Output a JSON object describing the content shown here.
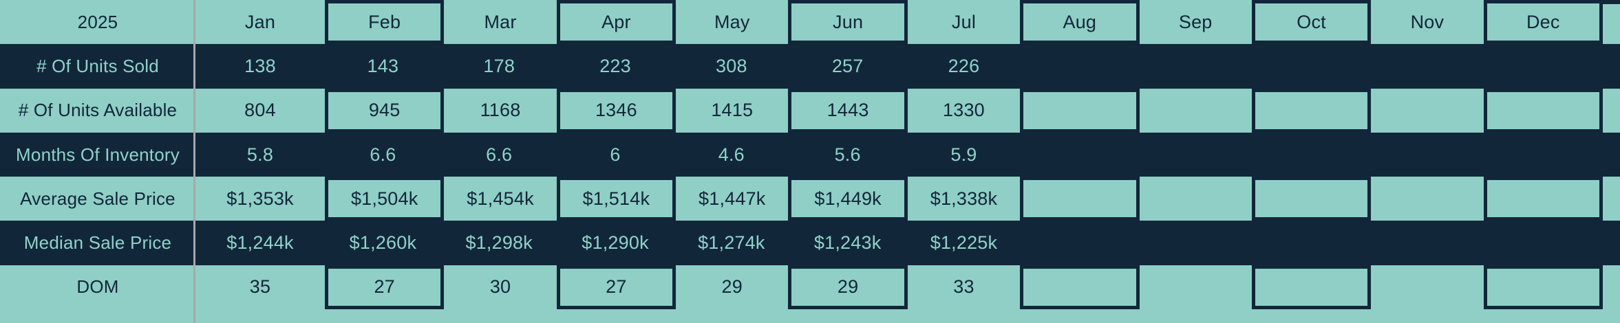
{
  "table": {
    "year_label": "2025",
    "months": [
      "Jan",
      "Feb",
      "Mar",
      "Apr",
      "May",
      "Jun",
      "Jul",
      "Aug",
      "Sep",
      "Oct",
      "Nov",
      "Dec"
    ],
    "boxed_month_indices": [
      1,
      3,
      5,
      7,
      9,
      11
    ],
    "rows": [
      {
        "label": "# Of Units Sold",
        "theme": "dark",
        "values": [
          "138",
          "143",
          "178",
          "223",
          "308",
          "257",
          "226",
          "",
          "",
          "",
          "",
          ""
        ]
      },
      {
        "label": "# Of Units Available",
        "theme": "light",
        "values": [
          "804",
          "945",
          "1168",
          "1346",
          "1415",
          "1443",
          "1330",
          "",
          "",
          "",
          "",
          ""
        ]
      },
      {
        "label": "Months Of Inventory",
        "theme": "dark",
        "values": [
          "5.8",
          "6.6",
          "6.6",
          "6",
          "4.6",
          "5.6",
          "5.9",
          "",
          "",
          "",
          "",
          ""
        ]
      },
      {
        "label": "Average Sale Price",
        "theme": "light",
        "values": [
          "$1,353k",
          "$1,504k",
          "$1,454k",
          "$1,514k",
          "$1,447k",
          "$1,449k",
          "$1,338k",
          "",
          "",
          "",
          "",
          ""
        ]
      },
      {
        "label": "Median Sale Price",
        "theme": "dark",
        "values": [
          "$1,244k",
          "$1,260k",
          "$1,298k",
          "$1,290k",
          "$1,274k",
          "$1,243k",
          "$1,225k",
          "",
          "",
          "",
          "",
          ""
        ]
      },
      {
        "label": "DOM",
        "theme": "light",
        "values": [
          "35",
          "27",
          "30",
          "27",
          "29",
          "29",
          "33",
          "",
          "",
          "",
          "",
          ""
        ]
      }
    ]
  },
  "style": {
    "teal_background": "#8FCFC6",
    "navy_background": "#12263A",
    "teal_text": "#8FD3C9",
    "navy_text": "#12263A",
    "divider_gray": "#A9A9A9"
  },
  "chart_data": {
    "type": "table",
    "title": "2025",
    "columns": [
      "Jan",
      "Feb",
      "Mar",
      "Apr",
      "May",
      "Jun",
      "Jul",
      "Aug",
      "Sep",
      "Oct",
      "Nov",
      "Dec"
    ],
    "rows": [
      {
        "label": "# Of Units Sold",
        "values": [
          138,
          143,
          178,
          223,
          308,
          257,
          226,
          null,
          null,
          null,
          null,
          null
        ]
      },
      {
        "label": "# Of Units Available",
        "values": [
          804,
          945,
          1168,
          1346,
          1415,
          1443,
          1330,
          null,
          null,
          null,
          null,
          null
        ]
      },
      {
        "label": "Months Of Inventory",
        "values": [
          5.8,
          6.6,
          6.6,
          6,
          4.6,
          5.6,
          5.9,
          null,
          null,
          null,
          null,
          null
        ]
      },
      {
        "label": "Average Sale Price",
        "values": [
          "$1,353k",
          "$1,504k",
          "$1,454k",
          "$1,514k",
          "$1,447k",
          "$1,449k",
          "$1,338k",
          null,
          null,
          null,
          null,
          null
        ]
      },
      {
        "label": "Median Sale Price",
        "values": [
          "$1,244k",
          "$1,260k",
          "$1,298k",
          "$1,290k",
          "$1,274k",
          "$1,243k",
          "$1,225k",
          null,
          null,
          null,
          null,
          null
        ]
      },
      {
        "label": "DOM",
        "values": [
          35,
          27,
          30,
          27,
          29,
          29,
          33,
          null,
          null,
          null,
          null,
          null
        ]
      }
    ],
    "layout": {
      "header_row_background": "#8FCFC6",
      "row_backgrounds_alternate": [
        "#12263A",
        "#8FCFC6"
      ],
      "outlined_columns": [
        "Feb",
        "Apr",
        "Jun",
        "Aug",
        "Oct",
        "Dec"
      ],
      "label_column_divider": "vertical gray line"
    }
  }
}
